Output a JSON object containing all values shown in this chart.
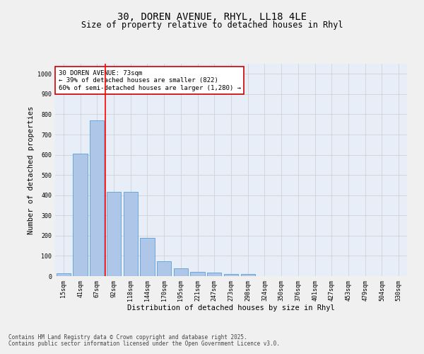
{
  "title_line1": "30, DOREN AVENUE, RHYL, LL18 4LE",
  "title_line2": "Size of property relative to detached houses in Rhyl",
  "xlabel": "Distribution of detached houses by size in Rhyl",
  "ylabel": "Number of detached properties",
  "categories": [
    "15sqm",
    "41sqm",
    "67sqm",
    "92sqm",
    "118sqm",
    "144sqm",
    "170sqm",
    "195sqm",
    "221sqm",
    "247sqm",
    "273sqm",
    "298sqm",
    "324sqm",
    "350sqm",
    "376sqm",
    "401sqm",
    "427sqm",
    "453sqm",
    "479sqm",
    "504sqm",
    "530sqm"
  ],
  "values": [
    15,
    605,
    770,
    415,
    415,
    190,
    75,
    40,
    20,
    18,
    10,
    12,
    0,
    0,
    0,
    0,
    0,
    0,
    0,
    0,
    0
  ],
  "bar_color": "#aec6e8",
  "bar_edge_color": "#5a9fd4",
  "red_line_x": 2.5,
  "annotation_text": "30 DOREN AVENUE: 73sqm\n← 39% of detached houses are smaller (822)\n60% of semi-detached houses are larger (1,280) →",
  "annotation_box_color": "#ffffff",
  "annotation_box_edge": "#cc0000",
  "ylim": [
    0,
    1050
  ],
  "yticks": [
    0,
    100,
    200,
    300,
    400,
    500,
    600,
    700,
    800,
    900,
    1000
  ],
  "grid_color": "#cccccc",
  "background_color": "#e8eef7",
  "fig_background_color": "#f0f0f0",
  "footer_line1": "Contains HM Land Registry data © Crown copyright and database right 2025.",
  "footer_line2": "Contains public sector information licensed under the Open Government Licence v3.0.",
  "title_fontsize": 10,
  "subtitle_fontsize": 8.5,
  "tick_fontsize": 6,
  "ylabel_fontsize": 7.5,
  "xlabel_fontsize": 7.5,
  "annotation_fontsize": 6.5,
  "footer_fontsize": 5.5
}
